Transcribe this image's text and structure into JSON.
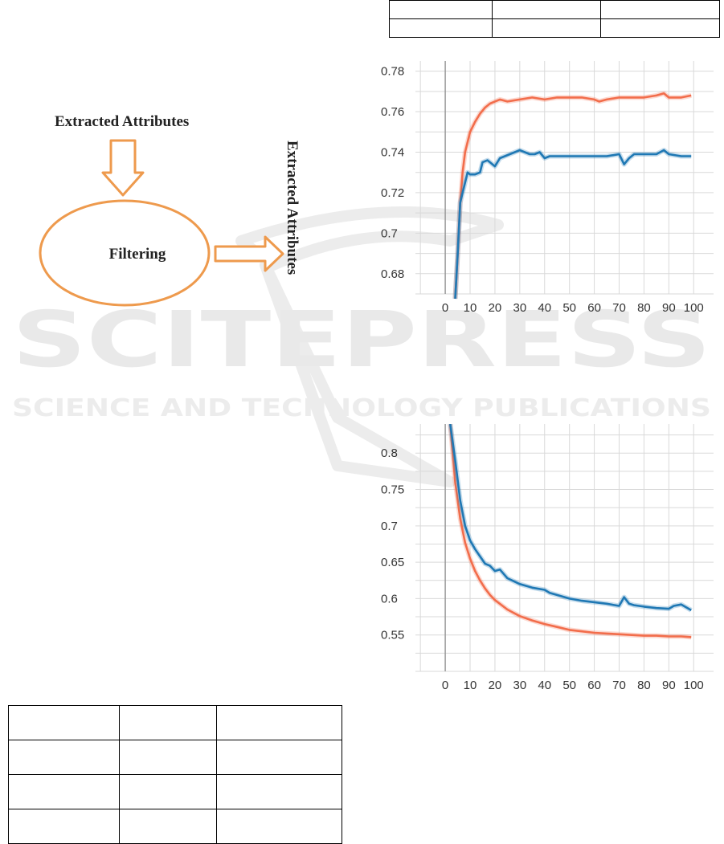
{
  "watermark": {
    "title": "SCITEPRESS",
    "subtitle": "SCIENCE AND TECHNOLOGY PUBLICATIONS"
  },
  "diagram": {
    "input_label": "Extracted Attributes",
    "process_label": "Filtering",
    "output_label": "Extracted Attributes",
    "accent_color": "#ee9a4d"
  },
  "top_table": {
    "rows": [
      [
        "",
        "",
        ""
      ],
      [
        "",
        "",
        ""
      ]
    ]
  },
  "bottom_table": {
    "rows": [
      [
        "",
        "",
        ""
      ],
      [
        "",
        "",
        ""
      ],
      [
        "",
        "",
        ""
      ],
      [
        "",
        "",
        ""
      ]
    ]
  },
  "chart_data": [
    {
      "type": "line",
      "title": "",
      "xlabel": "",
      "ylabel": "",
      "xlim": [
        -12,
        108
      ],
      "ylim": [
        0.67,
        0.785
      ],
      "x_ticks": [
        0,
        10,
        20,
        30,
        40,
        50,
        60,
        70,
        80,
        90,
        100
      ],
      "y_ticks": [
        0.68,
        0.7,
        0.72,
        0.74,
        0.76,
        0.78
      ],
      "y_tick_labels": [
        "0.68",
        "0.7",
        "0.72",
        "0.74",
        "0.76",
        "0.78"
      ],
      "grid": true,
      "series": [
        {
          "color": "#f26d4b",
          "x": [
            4,
            5,
            6,
            7,
            8,
            10,
            12,
            14,
            16,
            18,
            20,
            22,
            25,
            30,
            35,
            40,
            45,
            50,
            55,
            60,
            62,
            65,
            70,
            75,
            80,
            85,
            88,
            90,
            95,
            99
          ],
          "y": [
            0.66,
            0.69,
            0.715,
            0.73,
            0.74,
            0.75,
            0.755,
            0.759,
            0.762,
            0.764,
            0.765,
            0.766,
            0.765,
            0.766,
            0.767,
            0.766,
            0.767,
            0.767,
            0.767,
            0.766,
            0.765,
            0.766,
            0.767,
            0.767,
            0.767,
            0.768,
            0.769,
            0.767,
            0.767,
            0.768
          ]
        },
        {
          "color": "#1f78b4",
          "x": [
            4,
            5,
            6,
            7,
            8,
            9,
            10,
            12,
            14,
            15,
            17,
            18,
            20,
            22,
            24,
            26,
            28,
            30,
            32,
            34,
            36,
            38,
            40,
            42,
            45,
            50,
            55,
            60,
            65,
            70,
            72,
            74,
            76,
            80,
            85,
            88,
            90,
            95,
            99
          ],
          "y": [
            0.665,
            0.69,
            0.715,
            0.72,
            0.725,
            0.73,
            0.729,
            0.729,
            0.73,
            0.735,
            0.736,
            0.735,
            0.733,
            0.737,
            0.738,
            0.739,
            0.74,
            0.741,
            0.74,
            0.739,
            0.739,
            0.74,
            0.737,
            0.738,
            0.738,
            0.738,
            0.738,
            0.738,
            0.738,
            0.739,
            0.734,
            0.737,
            0.739,
            0.739,
            0.739,
            0.741,
            0.739,
            0.738,
            0.738
          ]
        }
      ]
    },
    {
      "type": "line",
      "title": "",
      "xlabel": "",
      "ylabel": "",
      "xlim": [
        -12,
        108
      ],
      "ylim": [
        0.5,
        0.84
      ],
      "x_ticks": [
        0,
        10,
        20,
        30,
        40,
        50,
        60,
        70,
        80,
        90,
        100
      ],
      "y_ticks": [
        0.55,
        0.6,
        0.65,
        0.7,
        0.75,
        0.8
      ],
      "y_tick_labels": [
        "0.55",
        "0.6",
        "0.65",
        "0.7",
        "0.75",
        "0.8"
      ],
      "grid": true,
      "series": [
        {
          "color": "#f26d4b",
          "x": [
            2,
            4,
            6,
            8,
            10,
            12,
            14,
            16,
            18,
            20,
            25,
            30,
            35,
            40,
            45,
            50,
            55,
            60,
            65,
            70,
            75,
            80,
            85,
            90,
            95,
            99
          ],
          "y": [
            0.84,
            0.76,
            0.71,
            0.677,
            0.655,
            0.638,
            0.625,
            0.614,
            0.605,
            0.598,
            0.585,
            0.576,
            0.57,
            0.565,
            0.561,
            0.557,
            0.555,
            0.553,
            0.552,
            0.551,
            0.55,
            0.549,
            0.549,
            0.548,
            0.548,
            0.547
          ]
        },
        {
          "color": "#1f78b4",
          "x": [
            2,
            4,
            6,
            8,
            10,
            12,
            14,
            16,
            18,
            20,
            22,
            25,
            30,
            35,
            40,
            42,
            45,
            50,
            55,
            60,
            65,
            70,
            72,
            74,
            76,
            80,
            85,
            90,
            92,
            95,
            99
          ],
          "y": [
            0.84,
            0.79,
            0.735,
            0.7,
            0.68,
            0.668,
            0.658,
            0.648,
            0.645,
            0.638,
            0.64,
            0.628,
            0.62,
            0.615,
            0.612,
            0.608,
            0.605,
            0.6,
            0.597,
            0.595,
            0.593,
            0.59,
            0.602,
            0.593,
            0.591,
            0.589,
            0.587,
            0.586,
            0.59,
            0.592,
            0.584
          ]
        }
      ]
    }
  ]
}
